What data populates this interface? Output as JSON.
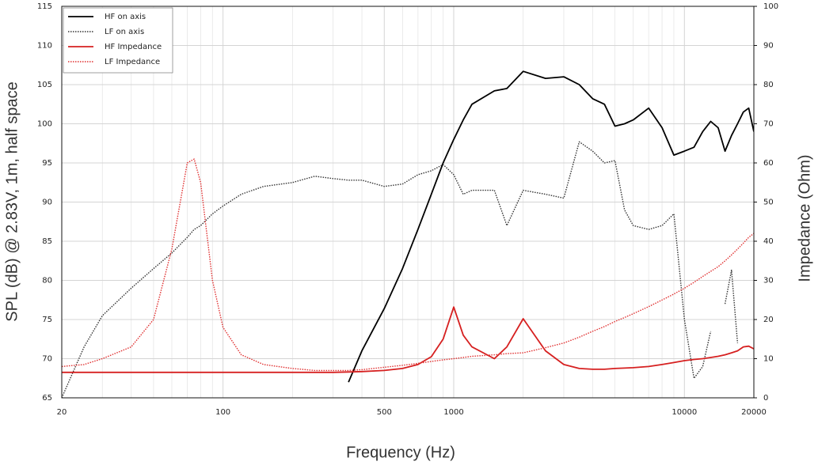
{
  "chart_data": {
    "type": "line",
    "x_label": "Frequency (Hz)",
    "y_label": "SPL (dB) @ 2.83V, 1m, half space",
    "y2_label": "Impedance (Ohm)",
    "log_x": true,
    "grid": true,
    "legend": "upper left",
    "xlim": [
      20,
      20000
    ],
    "xticks": [
      20,
      100,
      500,
      1000,
      10000,
      20000
    ],
    "xminorticks": [
      30,
      40,
      50,
      60,
      70,
      80,
      90,
      200,
      300,
      400,
      600,
      700,
      800,
      900,
      2000,
      3000,
      4000,
      5000,
      6000,
      7000,
      8000,
      9000
    ],
    "ylim": [
      65,
      115
    ],
    "yticks": [
      65,
      70,
      75,
      80,
      85,
      90,
      95,
      100,
      105,
      110,
      115
    ],
    "y2lim": [
      0,
      100
    ],
    "y2ticks": [
      0,
      10,
      20,
      30,
      40,
      50,
      60,
      70,
      80,
      90,
      100
    ],
    "x": [
      20,
      25,
      30,
      40,
      50,
      60,
      70,
      75,
      80,
      90,
      100,
      120,
      150,
      200,
      250,
      300,
      350,
      400,
      500,
      600,
      700,
      800,
      900,
      1000,
      1100,
      1200,
      1500,
      1700,
      2000,
      2500,
      3000,
      3500,
      4000,
      4500,
      5000,
      5500,
      6000,
      7000,
      8000,
      9000,
      10000,
      11000,
      12000,
      13000,
      14000,
      15000,
      16000,
      17000,
      18000,
      19000,
      20000
    ],
    "series": [
      {
        "name": "HF on axis",
        "color": "#000000",
        "style": "solid",
        "values": [
          null,
          null,
          null,
          null,
          null,
          null,
          null,
          null,
          null,
          null,
          null,
          null,
          null,
          null,
          null,
          null,
          67,
          71,
          76.4,
          81.5,
          86.5,
          91,
          95,
          98,
          100.5,
          102.5,
          104.2,
          104.5,
          106.7,
          105.8,
          106,
          105,
          103.2,
          102.5,
          99.7,
          100,
          100.5,
          102,
          99.5,
          96,
          96.5,
          97,
          99,
          100.3,
          99.5,
          96.5,
          98.5,
          100,
          101.5,
          102,
          99
        ]
      },
      {
        "name": "LF on axis",
        "color": "#333333",
        "style": "dotted",
        "values": [
          65,
          71.5,
          75.5,
          79,
          81.5,
          83.5,
          85.5,
          86.5,
          87,
          88.5,
          89.5,
          91,
          92,
          92.5,
          93.3,
          93,
          92.8,
          92.8,
          92,
          92.3,
          93.5,
          94,
          94.8,
          93.5,
          91,
          91.5,
          91.5,
          87,
          91.5,
          91,
          90.5,
          97.7,
          96.5,
          95,
          95.3,
          89,
          87,
          86.5,
          87,
          88.5,
          75,
          67.5,
          69,
          73.5,
          null,
          77,
          81.3,
          72,
          null,
          67,
          null
        ]
      },
      {
        "name": "HF Impedance",
        "color": "#d62020",
        "style": "solid",
        "axis": "y2",
        "values": [
          6.5,
          6.5,
          6.5,
          6.5,
          6.5,
          6.5,
          6.5,
          6.5,
          6.5,
          6.5,
          6.5,
          6.5,
          6.5,
          6.5,
          6.5,
          6.5,
          6.6,
          6.7,
          7,
          7.5,
          8.5,
          10.5,
          15,
          23.2,
          16,
          13,
          10,
          13,
          20.2,
          12,
          8.5,
          7.5,
          7.3,
          7.3,
          7.5,
          7.6,
          7.7,
          8,
          8.5,
          9,
          9.5,
          9.8,
          10,
          10.3,
          10.6,
          11,
          11.5,
          12,
          13,
          13.2,
          12.5
        ]
      },
      {
        "name": "LF Impedance",
        "color": "#e03030",
        "style": "dotted",
        "axis": "y2",
        "values": [
          8,
          8.5,
          10,
          13,
          20,
          38,
          60,
          61,
          55,
          30,
          18,
          11,
          8.5,
          7.5,
          7,
          7,
          7,
          7.2,
          7.8,
          8.3,
          8.8,
          9.3,
          9.7,
          10,
          10.3,
          10.6,
          11,
          11.3,
          11.5,
          12.8,
          14,
          15.5,
          17,
          18.2,
          19.5,
          20.5,
          21.5,
          23.3,
          25,
          26.5,
          28,
          29.5,
          31,
          32.3,
          33.5,
          35,
          36.5,
          38,
          39.5,
          41,
          42
        ]
      }
    ]
  }
}
